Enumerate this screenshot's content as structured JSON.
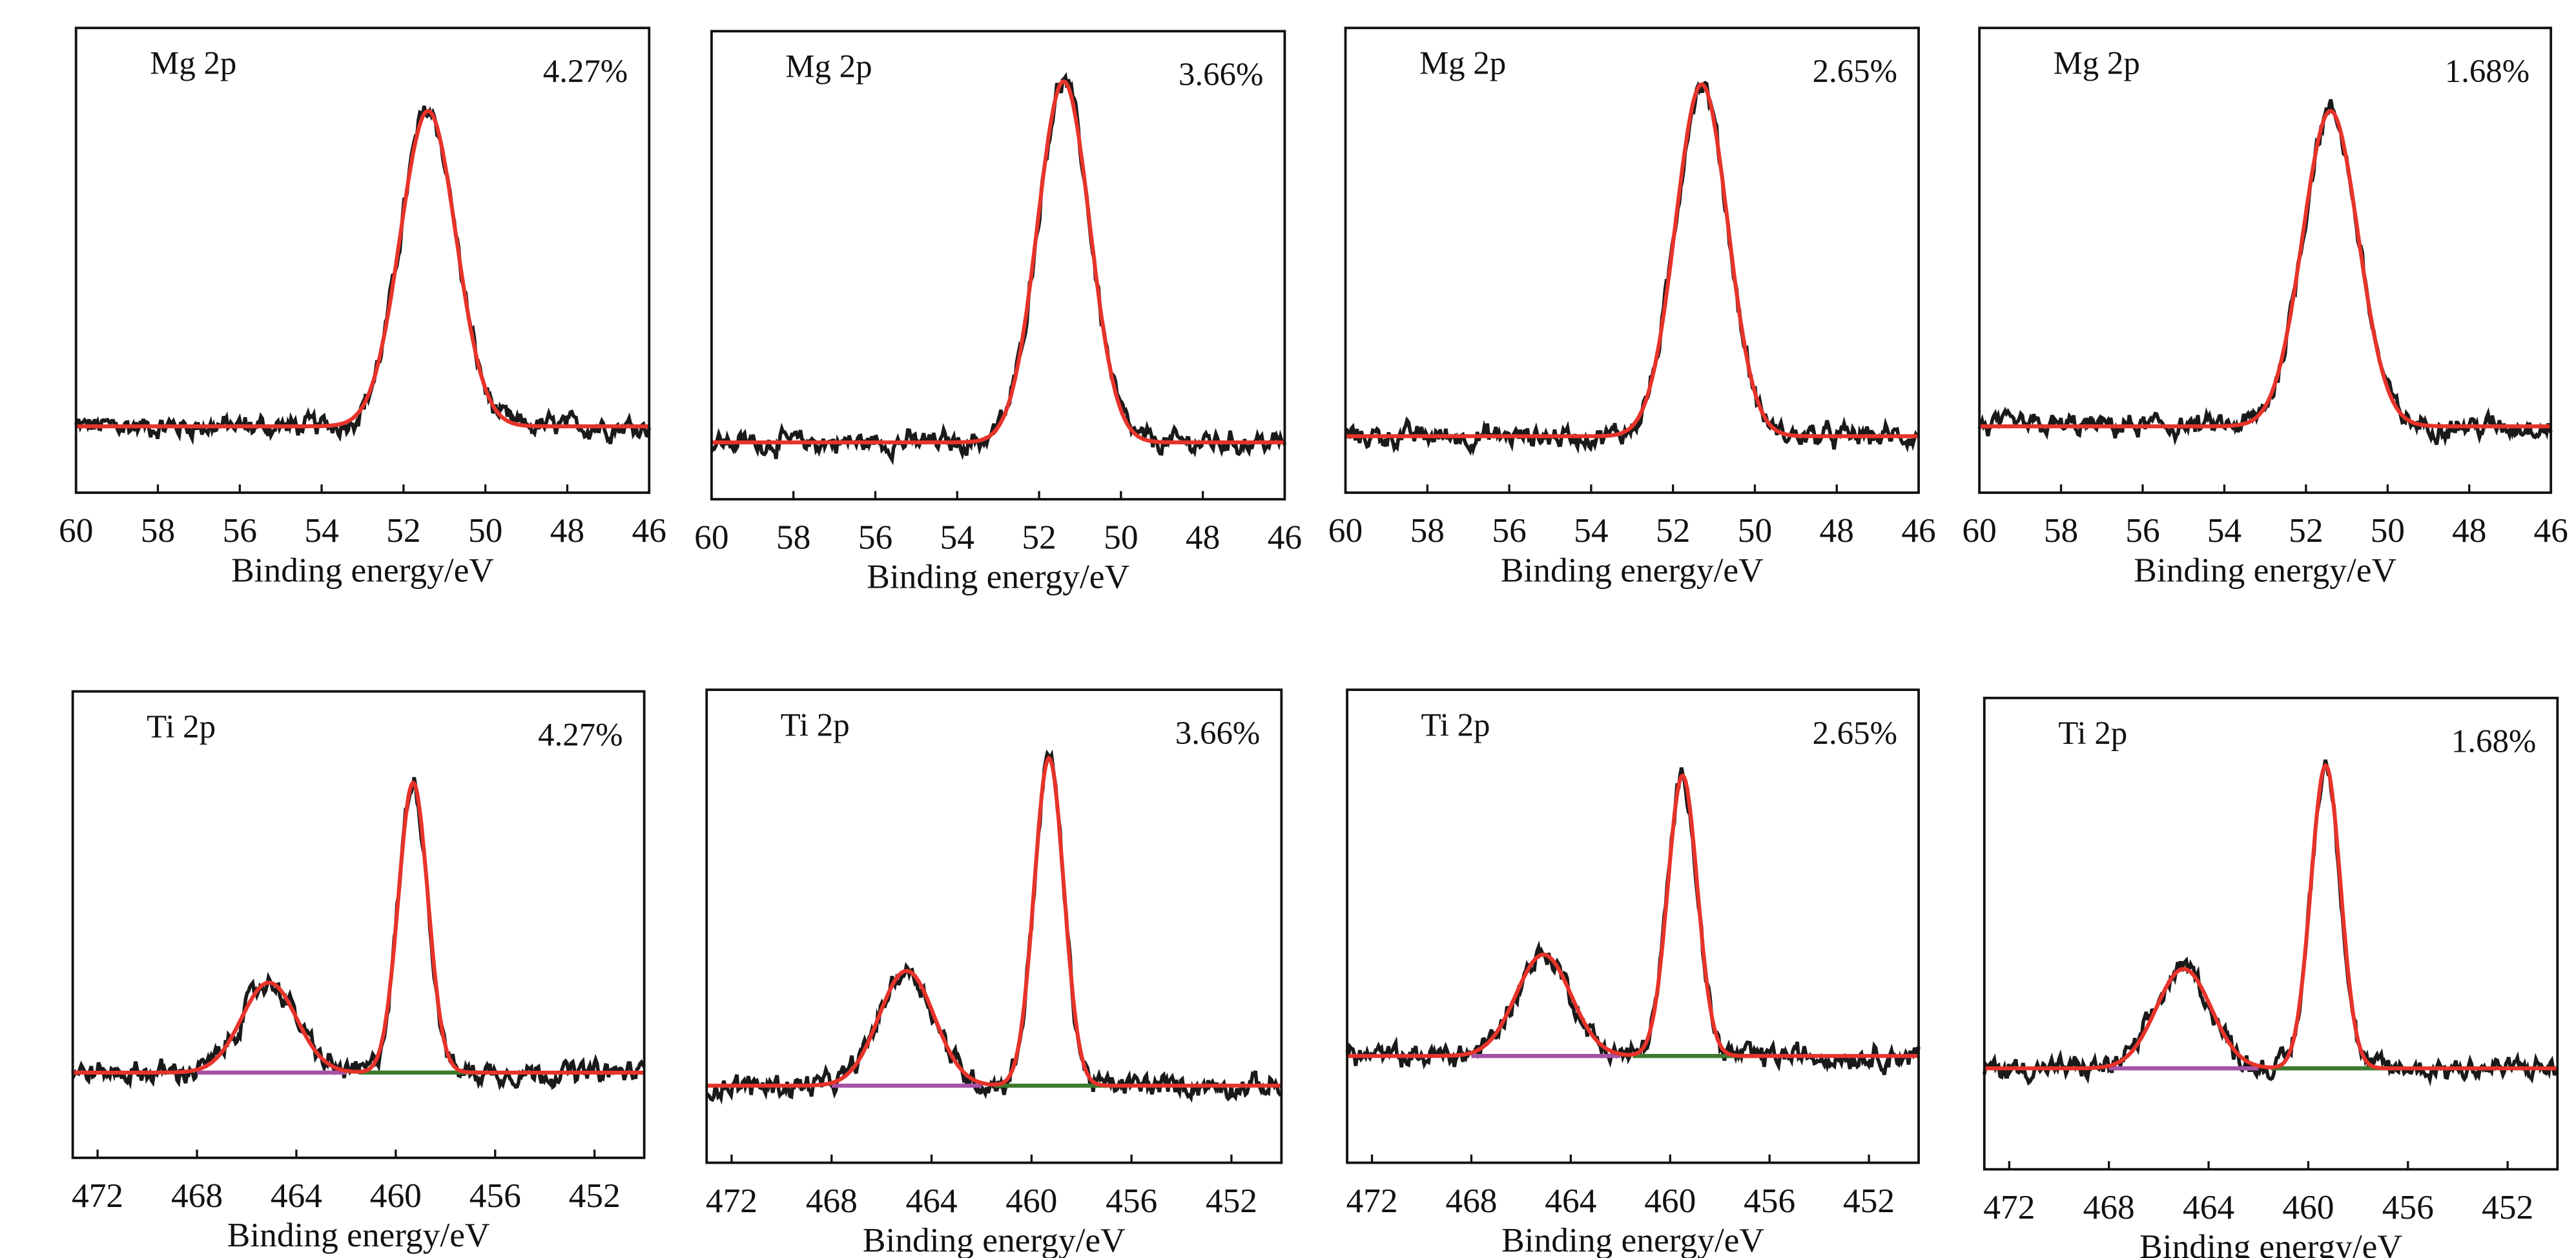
{
  "colors": {
    "raw": "#1a1a1a",
    "fit": "#e8332a",
    "bg_ti_2p12": "#a652a6",
    "bg_ti_2p32": "#3d7a2e"
  },
  "chart_data": [
    {
      "type": "line",
      "panel_label": "Mg 2p",
      "percent": "4.27%",
      "xlabel": "Binding energy/eV",
      "xlim": [
        60,
        46
      ],
      "ticks": [
        60,
        58,
        56,
        54,
        52,
        50,
        48,
        46
      ],
      "ylim": [
        -0.2,
        1.2
      ],
      "baseline": 0.0,
      "peaks": [
        {
          "center": 51.4,
          "amplitude": 0.95,
          "fwhm": 1.6
        }
      ],
      "grid": false
    },
    {
      "type": "line",
      "panel_label": "Mg 2p",
      "percent": "3.66%",
      "xlabel": "Binding energy/eV",
      "xlim": [
        60,
        46
      ],
      "ticks": [
        60,
        58,
        56,
        54,
        52,
        50,
        48,
        46
      ],
      "ylim": [
        -0.2,
        1.2
      ],
      "baseline": -0.03,
      "peaks": [
        {
          "center": 51.4,
          "amplitude": 1.08,
          "fwhm": 1.5
        }
      ],
      "grid": false
    },
    {
      "type": "line",
      "panel_label": "Mg 2p",
      "percent": "2.65%",
      "xlabel": "Binding energy/eV",
      "xlim": [
        60,
        46
      ],
      "ticks": [
        60,
        58,
        56,
        54,
        52,
        50,
        48,
        46
      ],
      "ylim": [
        -0.2,
        1.2
      ],
      "baseline": -0.03,
      "peaks": [
        {
          "center": 51.3,
          "amplitude": 1.06,
          "fwhm": 1.5
        }
      ],
      "grid": false
    },
    {
      "type": "line",
      "panel_label": "Mg 2p",
      "percent": "1.68%",
      "xlabel": "Binding energy/eV",
      "xlim": [
        60,
        46
      ],
      "ticks": [
        60,
        58,
        56,
        54,
        52,
        50,
        48,
        46
      ],
      "ylim": [
        -0.2,
        1.2
      ],
      "baseline": 0.0,
      "peaks": [
        {
          "center": 51.4,
          "amplitude": 0.95,
          "fwhm": 1.6
        }
      ],
      "grid": false
    },
    {
      "type": "line",
      "panel_label": "Ti 2p",
      "percent": "4.27%",
      "xlabel": "Binding energy/eV",
      "xlim": [
        473,
        450
      ],
      "ticks": [
        472,
        468,
        464,
        460,
        456,
        452
      ],
      "ylim": [
        -0.2,
        1.2
      ],
      "baseline": 0.056,
      "peaks": [
        {
          "center": 465.1,
          "amplitude": 0.27,
          "fwhm": 2.6
        },
        {
          "center": 459.3,
          "amplitude": 0.87,
          "fwhm": 1.4
        }
      ],
      "bg_ranges": [
        [
          468,
          462
        ],
        [
          461.5,
          456.5
        ]
      ],
      "grid": false
    },
    {
      "type": "line",
      "panel_label": "Ti 2p",
      "percent": "3.66%",
      "xlabel": "Binding energy/eV",
      "xlim": [
        473,
        450
      ],
      "ticks": [
        472,
        468,
        464,
        460,
        456,
        452
      ],
      "ylim": [
        -0.2,
        1.2
      ],
      "baseline": 0.028,
      "peaks": [
        {
          "center": 465.0,
          "amplitude": 0.34,
          "fwhm": 2.6
        },
        {
          "center": 459.3,
          "amplitude": 0.97,
          "fwhm": 1.4
        }
      ],
      "bg_ranges": [
        [
          468,
          462
        ],
        [
          461.5,
          456.5
        ]
      ],
      "grid": false
    },
    {
      "type": "line",
      "panel_label": "Ti 2p",
      "percent": "2.65%",
      "xlabel": "Binding energy/eV",
      "xlim": [
        473,
        450
      ],
      "ticks": [
        472,
        468,
        464,
        460,
        456,
        452
      ],
      "ylim": [
        -0.2,
        1.2
      ],
      "baseline": 0.116,
      "peaks": [
        {
          "center": 465.1,
          "amplitude": 0.3,
          "fwhm": 2.6
        },
        {
          "center": 459.5,
          "amplitude": 0.83,
          "fwhm": 1.4
        }
      ],
      "bg_ranges": [
        [
          468,
          462
        ],
        [
          461.5,
          456.5
        ]
      ],
      "grid": false
    },
    {
      "type": "line",
      "panel_label": "Ti 2p",
      "percent": "1.68%",
      "xlabel": "Binding energy/eV",
      "xlim": [
        473,
        450
      ],
      "ticks": [
        472,
        468,
        464,
        460,
        456,
        452
      ],
      "ylim": [
        -0.2,
        1.2
      ],
      "baseline": 0.1,
      "peaks": [
        {
          "center": 465.0,
          "amplitude": 0.295,
          "fwhm": 2.6
        },
        {
          "center": 459.3,
          "amplitude": 0.9,
          "fwhm": 1.4
        }
      ],
      "bg_ranges": [
        [
          468,
          462
        ],
        [
          461.5,
          456.5
        ]
      ],
      "grid": false
    }
  ]
}
